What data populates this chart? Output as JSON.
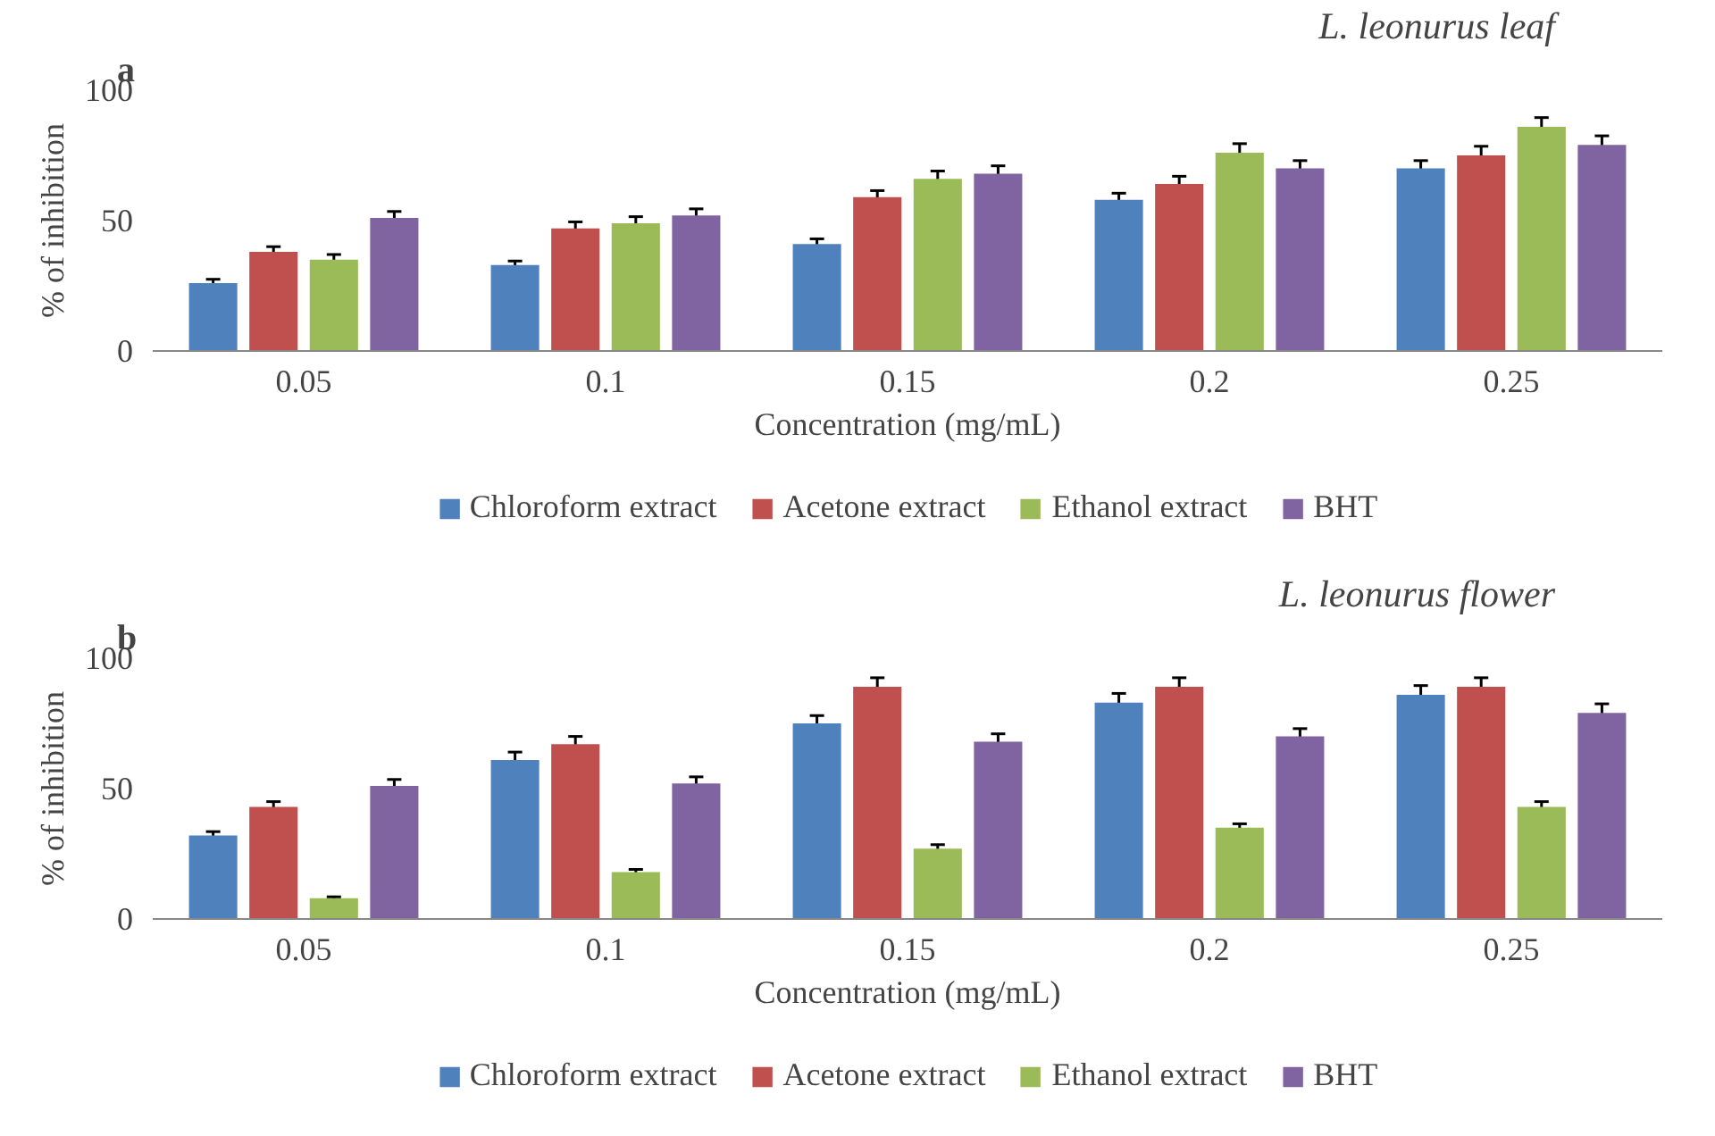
{
  "chart_data": [
    {
      "type": "bar",
      "title": "L. leonurus leaf",
      "xlabel": "Concentration (mg/mL)",
      "ylabel": "% of inhibition",
      "annotations": [
        "a"
      ],
      "categories": [
        "0.05",
        "0.1",
        "0.15",
        "0.2",
        "0.25"
      ],
      "ylim": [
        0,
        100
      ],
      "yticks": [
        0,
        50,
        100
      ],
      "grid": false,
      "legend": "bottom",
      "series": [
        {
          "name": "Chloroform extract",
          "color": "#4f81bd",
          "values": [
            26,
            33,
            41,
            58,
            70
          ],
          "errors": [
            1.5,
            1.5,
            2,
            2.5,
            3
          ]
        },
        {
          "name": "Acetone extract",
          "color": "#c0504d",
          "values": [
            38,
            47,
            59,
            64,
            75
          ],
          "errors": [
            2,
            2.5,
            2.5,
            3,
            3.5
          ]
        },
        {
          "name": "Ethanol extract",
          "color": "#9bbb59",
          "values": [
            35,
            49,
            66,
            76,
            86
          ],
          "errors": [
            2,
            2.5,
            3,
            3.5,
            3.5
          ]
        },
        {
          "name": "BHT",
          "color": "#8064a2",
          "values": [
            51,
            52,
            68,
            70,
            79
          ],
          "errors": [
            2.5,
            2.5,
            3,
            3,
            3.5
          ]
        }
      ]
    },
    {
      "type": "bar",
      "title": "L. leonurus flower",
      "xlabel": "Concentration (mg/mL)",
      "ylabel": "% of inhibition",
      "annotations": [
        "b"
      ],
      "categories": [
        "0.05",
        "0.1",
        "0.15",
        "0.2",
        "0.25"
      ],
      "ylim": [
        0,
        100
      ],
      "yticks": [
        0,
        50,
        100
      ],
      "grid": false,
      "legend": "bottom",
      "series": [
        {
          "name": "Chloroform extract",
          "color": "#4f81bd",
          "values": [
            32,
            61,
            75,
            83,
            86
          ],
          "errors": [
            1.5,
            3,
            3,
            3.5,
            3.5
          ]
        },
        {
          "name": "Acetone extract",
          "color": "#c0504d",
          "values": [
            43,
            67,
            89,
            89,
            89
          ],
          "errors": [
            2,
            3,
            3.5,
            3.5,
            3.5
          ]
        },
        {
          "name": "Ethanol extract",
          "color": "#9bbb59",
          "values": [
            8,
            18,
            27,
            35,
            43
          ],
          "errors": [
            0.5,
            1,
            1.5,
            1.5,
            2
          ]
        },
        {
          "name": "BHT",
          "color": "#8064a2",
          "values": [
            51,
            52,
            68,
            70,
            79
          ],
          "errors": [
            2.5,
            2.5,
            3,
            3,
            3.5
          ]
        }
      ]
    }
  ]
}
